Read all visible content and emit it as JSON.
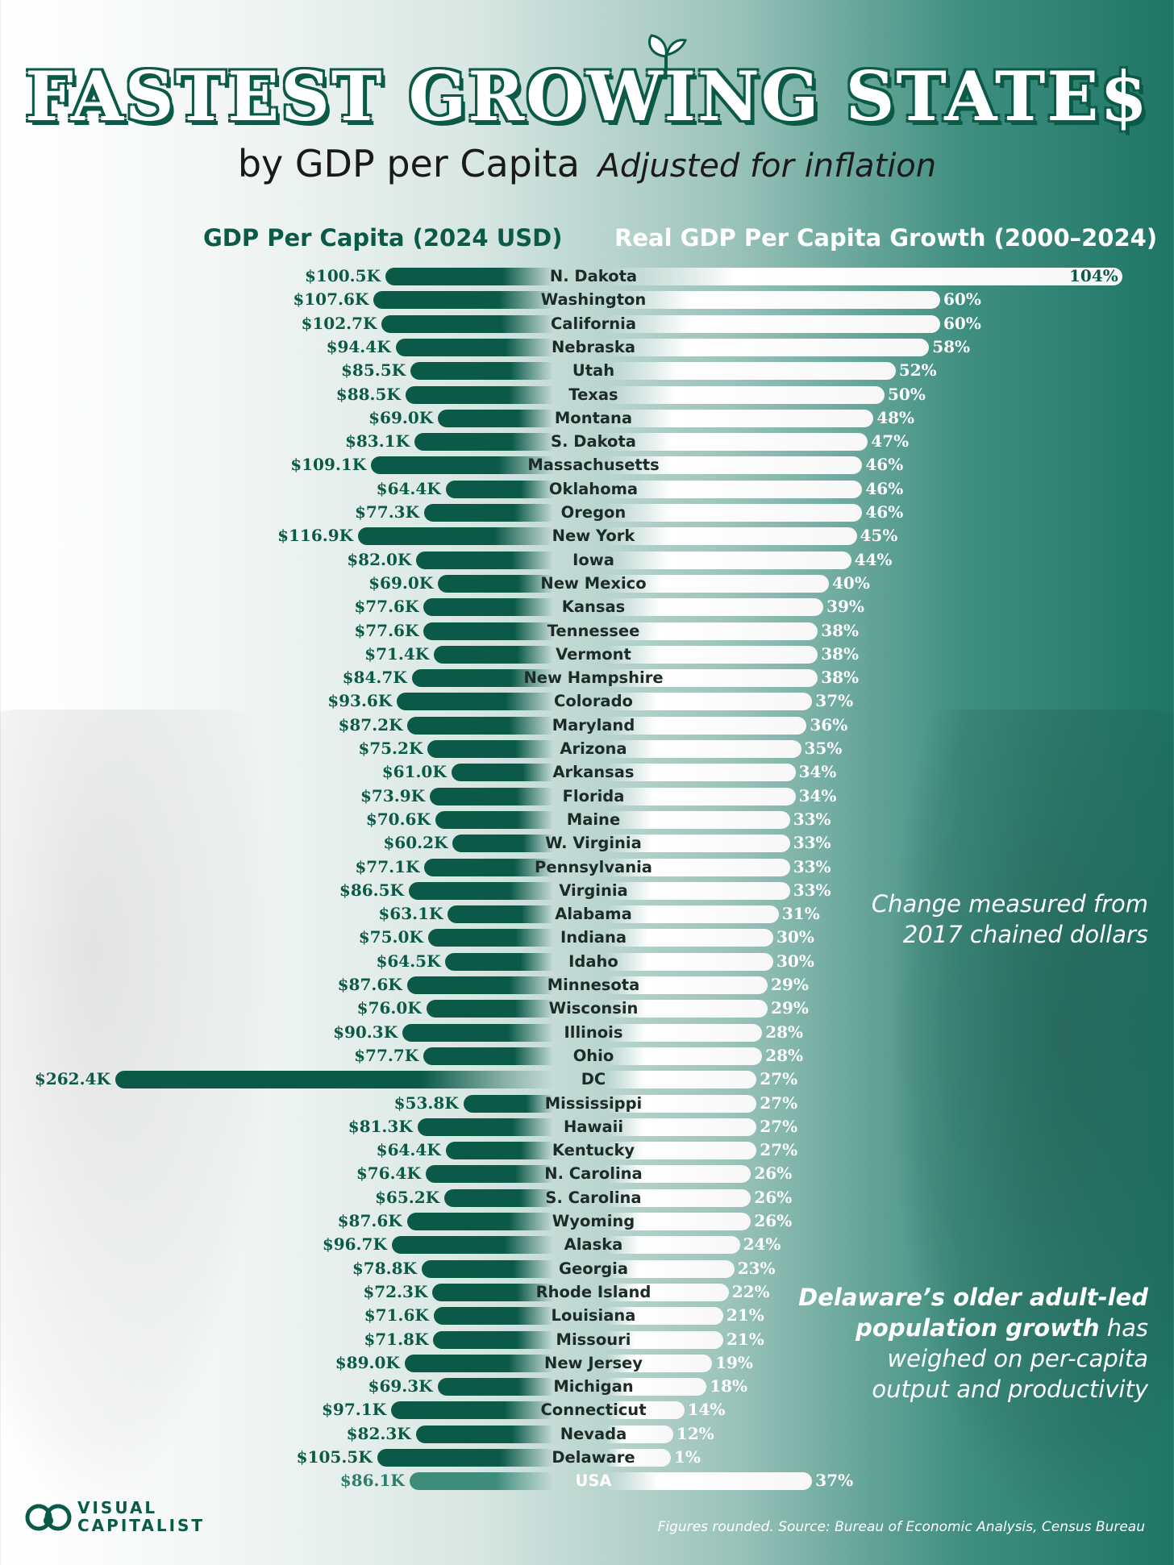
{
  "header": {
    "title": "Fastest Growing State$",
    "subtitle_main": "by GDP per Capita",
    "subtitle_italic": "Adjusted for inflation",
    "left_column": "GDP Per Capita (2024 USD)",
    "right_column": "Real GDP Per Capita Growth (2000–2024)"
  },
  "notes": {
    "chained_line1": "Change measured from",
    "chained_line2": "2017 chained dollars",
    "delaware_bold1": "Delaware’s older adult-led",
    "delaware_bold2": "population growth",
    "delaware_rest1": " has",
    "delaware_line3": "weighed on per-capita",
    "delaware_line4": "output and productivity"
  },
  "brand": {
    "line1": "VISUAL",
    "line2": "CAPITALIST"
  },
  "footer": {
    "source": "Figures rounded. Source: Bureau of Economic Analysis, Census Bureau"
  },
  "colors": {
    "accent": "#0b5a48",
    "usa_bar": "#3e8c7c",
    "growth_bar": "#ffffff"
  },
  "chart_data": {
    "type": "bar",
    "title": "Fastest Growing State$",
    "layout": "butterfly",
    "series": [
      {
        "name": "GDP Per Capita (2024 USD)",
        "unit": "thousand USD",
        "values": [
          100.5,
          107.6,
          102.7,
          94.4,
          85.5,
          88.5,
          69.0,
          83.1,
          109.1,
          64.4,
          77.3,
          116.9,
          82.0,
          69.0,
          77.6,
          77.6,
          71.4,
          84.7,
          93.6,
          87.2,
          75.2,
          61.0,
          73.9,
          70.6,
          60.2,
          77.1,
          86.5,
          63.1,
          75.0,
          64.5,
          87.6,
          76.0,
          90.3,
          77.7,
          262.4,
          53.8,
          81.3,
          64.4,
          76.4,
          65.2,
          87.6,
          96.7,
          78.8,
          72.3,
          71.6,
          71.8,
          89.0,
          69.3,
          97.1,
          82.3,
          105.5,
          86.1
        ],
        "labels": [
          "$100.5K",
          "$107.6K",
          "$102.7K",
          "$94.4K",
          "$85.5K",
          "$88.5K",
          "$69.0K",
          "$83.1K",
          "$109.1K",
          "$64.4K",
          "$77.3K",
          "$116.9K",
          "$82.0K",
          "$69.0K",
          "$77.6K",
          "$77.6K",
          "$71.4K",
          "$84.7K",
          "$93.6K",
          "$87.2K",
          "$75.2K",
          "$61.0K",
          "$73.9K",
          "$70.6K",
          "$60.2K",
          "$77.1K",
          "$86.5K",
          "$63.1K",
          "$75.0K",
          "$64.5K",
          "$87.6K",
          "$76.0K",
          "$90.3K",
          "$77.7K",
          "$262.4K",
          "$53.8K",
          "$81.3K",
          "$64.4K",
          "$76.4K",
          "$65.2K",
          "$87.6K",
          "$96.7K",
          "$78.8K",
          "$72.3K",
          "$71.6K",
          "$71.8K",
          "$89.0K",
          "$69.3K",
          "$97.1K",
          "$82.3K",
          "$105.5K",
          "$86.1K"
        ]
      },
      {
        "name": "Real GDP Per Capita Growth (2000–2024)",
        "unit": "percent",
        "values": [
          104,
          60,
          60,
          58,
          52,
          50,
          48,
          47,
          46,
          46,
          46,
          45,
          44,
          40,
          39,
          38,
          38,
          38,
          37,
          36,
          35,
          34,
          34,
          33,
          33,
          33,
          33,
          31,
          30,
          30,
          29,
          29,
          28,
          28,
          27,
          27,
          27,
          27,
          26,
          26,
          26,
          24,
          23,
          22,
          21,
          21,
          19,
          18,
          14,
          12,
          1,
          37
        ],
        "labels": [
          "104%",
          "60%",
          "60%",
          "58%",
          "52%",
          "50%",
          "48%",
          "47%",
          "46%",
          "46%",
          "46%",
          "45%",
          "44%",
          "40%",
          "39%",
          "38%",
          "38%",
          "38%",
          "37%",
          "36%",
          "35%",
          "34%",
          "34%",
          "33%",
          "33%",
          "33%",
          "33%",
          "31%",
          "30%",
          "30%",
          "29%",
          "29%",
          "28%",
          "28%",
          "27%",
          "27%",
          "27%",
          "27%",
          "26%",
          "26%",
          "26%",
          "24%",
          "23%",
          "22%",
          "21%",
          "21%",
          "19%",
          "18%",
          "14%",
          "12%",
          "1%",
          "37%"
        ]
      }
    ],
    "categories": [
      "N. Dakota",
      "Washington",
      "California",
      "Nebraska",
      "Utah",
      "Texas",
      "Montana",
      "S. Dakota",
      "Massachusetts",
      "Oklahoma",
      "Oregon",
      "New York",
      "Iowa",
      "New Mexico",
      "Kansas",
      "Tennessee",
      "Vermont",
      "New Hampshire",
      "Colorado",
      "Maryland",
      "Arizona",
      "Arkansas",
      "Florida",
      "Maine",
      "W. Virginia",
      "Pennsylvania",
      "Virginia",
      "Alabama",
      "Indiana",
      "Idaho",
      "Minnesota",
      "Wisconsin",
      "Illinois",
      "Ohio",
      "DC",
      "Mississippi",
      "Hawaii",
      "Kentucky",
      "N. Carolina",
      "S. Carolina",
      "Wyoming",
      "Alaska",
      "Georgia",
      "Rhode Island",
      "Louisiana",
      "Missouri",
      "New Jersey",
      "Michigan",
      "Connecticut",
      "Nevada",
      "Delaware",
      "USA"
    ]
  }
}
